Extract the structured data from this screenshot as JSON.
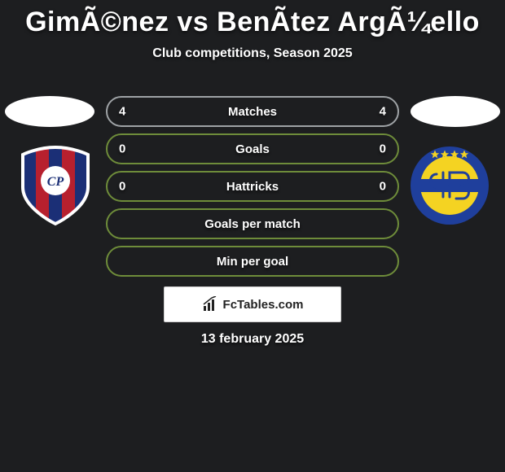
{
  "title": "GimÃ©nez vs BenÃ­tez ArgÃ¼ello",
  "subtitle": "Club competitions, Season 2025",
  "date": "13 february 2025",
  "branding": {
    "label": "FcTables.com"
  },
  "colors": {
    "background": "#1d1e20",
    "matches_border": "#9ea2a5",
    "goals_border": "#6e8c3a",
    "hattricks_border": "#6e8c3a",
    "gpm_border": "#6e8c3a",
    "mpg_border": "#6e8c3a",
    "text": "#ffffff"
  },
  "rows": [
    {
      "key": "matches",
      "label": "Matches",
      "left": "4",
      "right": "4",
      "border": "#9ea2a5"
    },
    {
      "key": "goals",
      "label": "Goals",
      "left": "0",
      "right": "0",
      "border": "#6e8c3a"
    },
    {
      "key": "hattricks",
      "label": "Hattricks",
      "left": "0",
      "right": "0",
      "border": "#6e8c3a"
    },
    {
      "key": "gpm",
      "label": "Goals per match",
      "left": "",
      "right": "",
      "border": "#6e8c3a"
    },
    {
      "key": "mpg",
      "label": "Min per goal",
      "left": "",
      "right": "",
      "border": "#6e8c3a"
    }
  ],
  "left_crest": {
    "type": "shield",
    "stripes": [
      "#1b2f76",
      "#b7202e",
      "#1b2f76",
      "#b7202e",
      "#1b2f76"
    ],
    "outline": "#ffffff",
    "disc_bg": "#ffffff",
    "monogram": "CP",
    "monogram_color": "#1b2f76"
  },
  "right_crest": {
    "type": "circle",
    "outer": "#1f3f9c",
    "inner": "#f4d322",
    "stripe": "#1f3f9c",
    "star_color": "#f4d322",
    "stars": 4,
    "monogram_paths": true
  }
}
